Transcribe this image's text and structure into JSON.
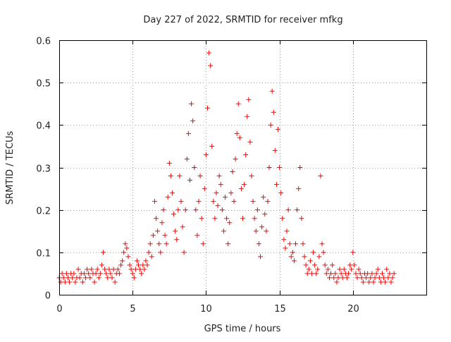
{
  "chart_data": {
    "type": "scatter",
    "title": "Day 227 of 2022, SRMTID for receiver mfkg",
    "xlabel": "GPS time / hours",
    "ylabel": "SRMTID / TECUs",
    "xlim": [
      0,
      25
    ],
    "ylim": [
      0,
      0.6
    ],
    "xticks": [
      0,
      5,
      10,
      15,
      20
    ],
    "xtick_labels": [
      "0",
      "5",
      "10",
      "15",
      "20"
    ],
    "yticks": [
      0,
      0.1,
      0.2,
      0.3,
      0.4,
      0.5,
      0.6
    ],
    "ytick_labels": [
      "0",
      "0.1",
      "0.2",
      "0.3",
      "0.4",
      "0.5",
      "0.6"
    ],
    "grid": true,
    "marker": "plus",
    "series": [
      {
        "name": "mfkg",
        "color": "#ff0000",
        "points": [
          [
            0.0,
            0.04
          ],
          [
            0.1,
            0.03
          ],
          [
            0.2,
            0.05
          ],
          [
            0.3,
            0.04
          ],
          [
            0.4,
            0.03
          ],
          [
            0.5,
            0.05
          ],
          [
            0.6,
            0.04
          ],
          [
            0.7,
            0.03
          ],
          [
            0.8,
            0.05
          ],
          [
            0.9,
            0.04
          ],
          [
            1.0,
            0.05
          ],
          [
            1.1,
            0.03
          ],
          [
            1.2,
            0.04
          ],
          [
            1.3,
            0.06
          ],
          [
            1.4,
            0.04
          ],
          [
            1.5,
            0.05
          ],
          [
            1.6,
            0.03
          ],
          [
            1.7,
            0.05
          ],
          [
            1.8,
            0.04
          ],
          [
            1.9,
            0.06
          ],
          [
            2.0,
            0.05
          ],
          [
            2.1,
            0.04
          ],
          [
            2.2,
            0.06
          ],
          [
            2.3,
            0.05
          ],
          [
            2.4,
            0.03
          ],
          [
            2.5,
            0.05
          ],
          [
            2.6,
            0.06
          ],
          [
            2.7,
            0.04
          ],
          [
            2.8,
            0.05
          ],
          [
            2.9,
            0.07
          ],
          [
            3.0,
            0.1
          ],
          [
            3.1,
            0.06
          ],
          [
            3.2,
            0.05
          ],
          [
            3.3,
            0.04
          ],
          [
            3.4,
            0.06
          ],
          [
            3.5,
            0.05
          ],
          [
            3.6,
            0.04
          ],
          [
            3.7,
            0.06
          ],
          [
            3.8,
            0.03
          ],
          [
            3.9,
            0.05
          ],
          [
            4.0,
            0.06
          ],
          [
            4.1,
            0.05
          ],
          [
            4.2,
            0.07
          ],
          [
            4.3,
            0.08
          ],
          [
            4.4,
            0.1
          ],
          [
            4.5,
            0.12
          ],
          [
            4.6,
            0.11
          ],
          [
            4.7,
            0.09
          ],
          [
            4.8,
            0.07
          ],
          [
            4.9,
            0.06
          ],
          [
            5.0,
            0.05
          ],
          [
            5.1,
            0.04
          ],
          [
            5.2,
            0.06
          ],
          [
            5.3,
            0.08
          ],
          [
            5.4,
            0.07
          ],
          [
            5.5,
            0.06
          ],
          [
            5.6,
            0.05
          ],
          [
            5.7,
            0.07
          ],
          [
            5.8,
            0.06
          ],
          [
            5.9,
            0.08
          ],
          [
            6.0,
            0.07
          ],
          [
            6.1,
            0.1
          ],
          [
            6.2,
            0.12
          ],
          [
            6.3,
            0.09
          ],
          [
            6.4,
            0.14
          ],
          [
            6.5,
            0.22
          ],
          [
            6.6,
            0.18
          ],
          [
            6.7,
            0.15
          ],
          [
            6.8,
            0.12
          ],
          [
            6.9,
            0.1
          ],
          [
            7.0,
            0.17
          ],
          [
            7.1,
            0.2
          ],
          [
            7.2,
            0.14
          ],
          [
            7.3,
            0.12
          ],
          [
            7.4,
            0.23
          ],
          [
            7.5,
            0.31
          ],
          [
            7.6,
            0.28
          ],
          [
            7.7,
            0.24
          ],
          [
            7.8,
            0.19
          ],
          [
            7.9,
            0.15
          ],
          [
            8.0,
            0.13
          ],
          [
            8.1,
            0.2
          ],
          [
            8.2,
            0.28
          ],
          [
            8.3,
            0.22
          ],
          [
            8.4,
            0.16
          ],
          [
            8.5,
            0.1
          ],
          [
            8.6,
            0.2
          ],
          [
            8.7,
            0.32
          ],
          [
            8.8,
            0.38
          ],
          [
            8.9,
            0.27
          ],
          [
            9.0,
            0.45
          ],
          [
            9.1,
            0.41
          ],
          [
            9.2,
            0.3
          ],
          [
            9.3,
            0.2
          ],
          [
            9.4,
            0.14
          ],
          [
            9.5,
            0.22
          ],
          [
            9.6,
            0.28
          ],
          [
            9.7,
            0.18
          ],
          [
            9.8,
            0.12
          ],
          [
            9.9,
            0.25
          ],
          [
            10.0,
            0.33
          ],
          [
            10.1,
            0.44
          ],
          [
            10.2,
            0.57
          ],
          [
            10.3,
            0.54
          ],
          [
            10.4,
            0.35
          ],
          [
            10.5,
            0.22
          ],
          [
            10.6,
            0.18
          ],
          [
            10.7,
            0.24
          ],
          [
            10.8,
            0.21
          ],
          [
            10.9,
            0.28
          ],
          [
            11.0,
            0.26
          ],
          [
            11.1,
            0.2
          ],
          [
            11.2,
            0.15
          ],
          [
            11.3,
            0.23
          ],
          [
            11.4,
            0.18
          ],
          [
            11.5,
            0.12
          ],
          [
            11.6,
            0.17
          ],
          [
            11.7,
            0.24
          ],
          [
            11.8,
            0.29
          ],
          [
            11.9,
            0.22
          ],
          [
            12.0,
            0.32
          ],
          [
            12.1,
            0.38
          ],
          [
            12.2,
            0.45
          ],
          [
            12.3,
            0.37
          ],
          [
            12.4,
            0.25
          ],
          [
            12.5,
            0.18
          ],
          [
            12.6,
            0.26
          ],
          [
            12.7,
            0.33
          ],
          [
            12.8,
            0.42
          ],
          [
            12.9,
            0.46
          ],
          [
            13.0,
            0.36
          ],
          [
            13.1,
            0.28
          ],
          [
            13.2,
            0.22
          ],
          [
            13.3,
            0.18
          ],
          [
            13.4,
            0.15
          ],
          [
            13.5,
            0.2
          ],
          [
            13.6,
            0.12
          ],
          [
            13.7,
            0.09
          ],
          [
            13.8,
            0.16
          ],
          [
            13.9,
            0.23
          ],
          [
            14.0,
            0.19
          ],
          [
            14.1,
            0.15
          ],
          [
            14.2,
            0.22
          ],
          [
            14.3,
            0.3
          ],
          [
            14.4,
            0.4
          ],
          [
            14.5,
            0.48
          ],
          [
            14.6,
            0.43
          ],
          [
            14.7,
            0.34
          ],
          [
            14.8,
            0.26
          ],
          [
            14.9,
            0.39
          ],
          [
            15.0,
            0.3
          ],
          [
            15.1,
            0.24
          ],
          [
            15.2,
            0.18
          ],
          [
            15.3,
            0.13
          ],
          [
            15.4,
            0.11
          ],
          [
            15.5,
            0.15
          ],
          [
            15.6,
            0.2
          ],
          [
            15.7,
            0.12
          ],
          [
            15.8,
            0.09
          ],
          [
            15.9,
            0.1
          ],
          [
            16.0,
            0.08
          ],
          [
            16.1,
            0.12
          ],
          [
            16.2,
            0.2
          ],
          [
            16.3,
            0.25
          ],
          [
            16.4,
            0.3
          ],
          [
            16.5,
            0.18
          ],
          [
            16.6,
            0.12
          ],
          [
            16.7,
            0.09
          ],
          [
            16.8,
            0.07
          ],
          [
            16.9,
            0.05
          ],
          [
            17.0,
            0.06
          ],
          [
            17.1,
            0.08
          ],
          [
            17.2,
            0.05
          ],
          [
            17.3,
            0.1
          ],
          [
            17.4,
            0.07
          ],
          [
            17.5,
            0.05
          ],
          [
            17.6,
            0.06
          ],
          [
            17.7,
            0.09
          ],
          [
            17.8,
            0.28
          ],
          [
            17.9,
            0.12
          ],
          [
            18.0,
            0.1
          ],
          [
            18.1,
            0.07
          ],
          [
            18.2,
            0.05
          ],
          [
            18.3,
            0.06
          ],
          [
            18.4,
            0.04
          ],
          [
            18.5,
            0.05
          ],
          [
            18.6,
            0.07
          ],
          [
            18.7,
            0.04
          ],
          [
            18.8,
            0.05
          ],
          [
            18.9,
            0.03
          ],
          [
            19.0,
            0.04
          ],
          [
            19.1,
            0.06
          ],
          [
            19.2,
            0.05
          ],
          [
            19.3,
            0.04
          ],
          [
            19.4,
            0.06
          ],
          [
            19.5,
            0.05
          ],
          [
            19.6,
            0.04
          ],
          [
            19.7,
            0.05
          ],
          [
            19.8,
            0.07
          ],
          [
            19.9,
            0.06
          ],
          [
            20.0,
            0.1
          ],
          [
            20.1,
            0.07
          ],
          [
            20.2,
            0.05
          ],
          [
            20.3,
            0.04
          ],
          [
            20.4,
            0.06
          ],
          [
            20.5,
            0.05
          ],
          [
            20.6,
            0.04
          ],
          [
            20.7,
            0.03
          ],
          [
            20.8,
            0.05
          ],
          [
            20.9,
            0.04
          ],
          [
            21.0,
            0.05
          ],
          [
            21.1,
            0.03
          ],
          [
            21.2,
            0.04
          ],
          [
            21.3,
            0.05
          ],
          [
            21.4,
            0.03
          ],
          [
            21.5,
            0.04
          ],
          [
            21.6,
            0.05
          ],
          [
            21.7,
            0.06
          ],
          [
            21.8,
            0.04
          ],
          [
            21.9,
            0.03
          ],
          [
            22.0,
            0.05
          ],
          [
            22.1,
            0.04
          ],
          [
            22.2,
            0.03
          ],
          [
            22.3,
            0.06
          ],
          [
            22.4,
            0.04
          ],
          [
            22.5,
            0.05
          ],
          [
            22.6,
            0.03
          ],
          [
            22.7,
            0.04
          ],
          [
            22.8,
            0.05
          ]
        ]
      }
    ]
  }
}
